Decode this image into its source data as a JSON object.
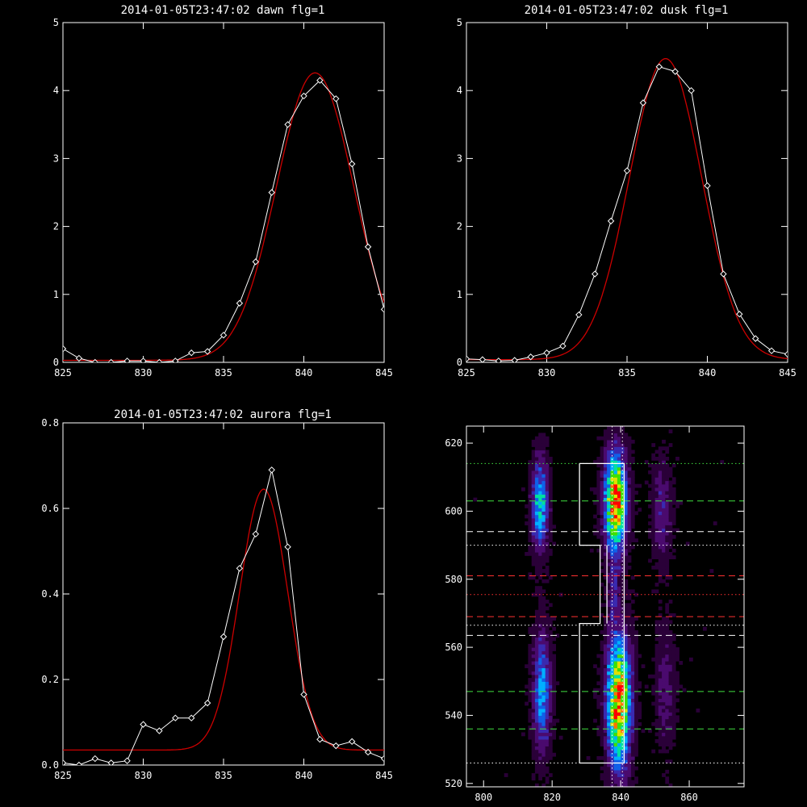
{
  "chart_data": [
    {
      "type": "line",
      "title": "2014-01-05T23:47:02 dawn flg=1",
      "xlim": [
        825,
        845
      ],
      "ylim": [
        0,
        5
      ],
      "xticks": [
        825,
        830,
        835,
        840,
        845
      ],
      "yticks": [
        0,
        1,
        2,
        3,
        4,
        5
      ],
      "series": [
        {
          "kind": "data",
          "color": "#ffffff",
          "marker": "diamond",
          "x": [
            825,
            826,
            827,
            828,
            829,
            830,
            831,
            832,
            833,
            834,
            835,
            836,
            837,
            838,
            839,
            840,
            841,
            842,
            843,
            844,
            845
          ],
          "y": [
            0.2,
            0.06,
            0.0,
            0.0,
            0.02,
            0.02,
            0.0,
            0.02,
            0.14,
            0.16,
            0.4,
            0.87,
            1.48,
            2.5,
            3.5,
            3.92,
            4.15,
            3.88,
            2.92,
            1.7,
            0.78
          ]
        },
        {
          "kind": "fit",
          "color": "#cc0000",
          "model": {
            "amp": 4.23,
            "center": 840.7,
            "sigma": 2.4,
            "offset": 0.03
          }
        }
      ]
    },
    {
      "type": "line",
      "title": "2014-01-05T23:47:02 dusk flg=1",
      "xlim": [
        825,
        845
      ],
      "ylim": [
        0,
        5
      ],
      "xticks": [
        825,
        830,
        835,
        840,
        845
      ],
      "yticks": [
        0,
        1,
        2,
        3,
        4,
        5
      ],
      "series": [
        {
          "kind": "data",
          "color": "#ffffff",
          "marker": "diamond",
          "x": [
            825,
            826,
            827,
            828,
            829,
            830,
            831,
            832,
            833,
            834,
            835,
            836,
            837,
            838,
            839,
            840,
            841,
            842,
            843,
            844,
            845
          ],
          "y": [
            0.05,
            0.04,
            0.02,
            0.03,
            0.08,
            0.14,
            0.24,
            0.7,
            1.3,
            2.08,
            2.82,
            3.82,
            4.35,
            4.28,
            4.0,
            2.6,
            1.3,
            0.71,
            0.35,
            0.17,
            0.12
          ]
        },
        {
          "kind": "fit",
          "color": "#cc0000",
          "model": {
            "amp": 4.43,
            "center": 837.4,
            "sigma": 2.25,
            "offset": 0.04
          }
        }
      ]
    },
    {
      "type": "line",
      "title": "2014-01-05T23:47:02 aurora flg=1",
      "xlim": [
        825,
        845
      ],
      "ylim": [
        0,
        0.8
      ],
      "xticks": [
        825,
        830,
        835,
        840,
        845
      ],
      "yticks": [
        0.0,
        0.2,
        0.4,
        0.6,
        0.8
      ],
      "series": [
        {
          "kind": "data",
          "color": "#ffffff",
          "marker": "diamond",
          "x": [
            825,
            826,
            827,
            828,
            829,
            830,
            831,
            832,
            833,
            834,
            835,
            836,
            837,
            838,
            839,
            840,
            841,
            842,
            843,
            844,
            845
          ],
          "y": [
            0.005,
            0.0,
            0.015,
            0.005,
            0.01,
            0.095,
            0.08,
            0.11,
            0.11,
            0.145,
            0.3,
            0.46,
            0.54,
            0.69,
            0.51,
            0.165,
            0.06,
            0.045,
            0.055,
            0.03,
            0.015
          ]
        },
        {
          "kind": "fit",
          "color": "#cc0000",
          "model": {
            "amp": 0.61,
            "center": 837.5,
            "sigma": 1.5,
            "offset": 0.035
          }
        }
      ]
    },
    {
      "type": "heatmap",
      "xlim": [
        795,
        876
      ],
      "ylim": [
        519,
        625
      ],
      "xticks": [
        800,
        820,
        840,
        860
      ],
      "yticks": [
        520,
        540,
        560,
        580,
        600,
        620
      ],
      "colormap": [
        "#000000",
        "#2a0038",
        "#4a0a6e",
        "#3a2ab0",
        "#1060e8",
        "#00b0ff",
        "#00e0a0",
        "#40e000",
        "#e0e000",
        "#ff7000",
        "#ff0000"
      ],
      "sources": [
        {
          "x": 816.5,
          "y": 602,
          "sx": 1.6,
          "sy": 9,
          "peak": 0.55
        },
        {
          "x": 817,
          "y": 547,
          "sx": 1.8,
          "sy": 12,
          "peak": 0.45
        },
        {
          "x": 838.5,
          "y": 603,
          "sx": 2.2,
          "sy": 10,
          "peak": 0.95
        },
        {
          "x": 839.5,
          "y": 544,
          "sx": 2.4,
          "sy": 13,
          "peak": 0.95
        },
        {
          "x": 852,
          "y": 600,
          "sx": 2.0,
          "sy": 10,
          "peak": 0.22
        },
        {
          "x": 853,
          "y": 548,
          "sx": 2.0,
          "sy": 12,
          "peak": 0.18
        },
        {
          "x": 838,
          "y": 575,
          "sx": 1.2,
          "sy": 6,
          "peak": 0.2
        }
      ],
      "hlines": [
        {
          "y": 614,
          "color": "#40e040",
          "style": "dotted"
        },
        {
          "y": 603,
          "color": "#40e040",
          "style": "dashed"
        },
        {
          "y": 594,
          "color": "#ffffff",
          "style": "dashed"
        },
        {
          "y": 590,
          "color": "#ffffff",
          "style": "dotted"
        },
        {
          "y": 581,
          "color": "#ff3030",
          "style": "dashed"
        },
        {
          "y": 575.5,
          "color": "#ff3030",
          "style": "dotted"
        },
        {
          "y": 569,
          "color": "#ff3030",
          "style": "dashed"
        },
        {
          "y": 566.5,
          "color": "#ffffff",
          "style": "dotted"
        },
        {
          "y": 563.5,
          "color": "#ffffff",
          "style": "dashed"
        },
        {
          "y": 547,
          "color": "#40e040",
          "style": "dashed"
        },
        {
          "y": 536,
          "color": "#40e040",
          "style": "dashed"
        },
        {
          "y": 526,
          "color": "#ffffff",
          "style": "dotted"
        }
      ],
      "vlines": [
        {
          "x": 837.5,
          "color": "#ffffff",
          "style": "dotted"
        },
        {
          "x": 840.5,
          "color": "#ffffff",
          "style": "dotted"
        }
      ],
      "outline_points": [
        [
          828,
          614
        ],
        [
          841,
          614
        ],
        [
          841,
          526
        ],
        [
          828,
          526
        ],
        [
          828,
          567
        ],
        [
          834,
          567
        ],
        [
          834,
          590
        ],
        [
          828,
          590
        ],
        [
          828,
          614
        ]
      ],
      "outline_inner": [
        [
          836,
          590
        ],
        [
          836,
          567
        ]
      ]
    }
  ]
}
